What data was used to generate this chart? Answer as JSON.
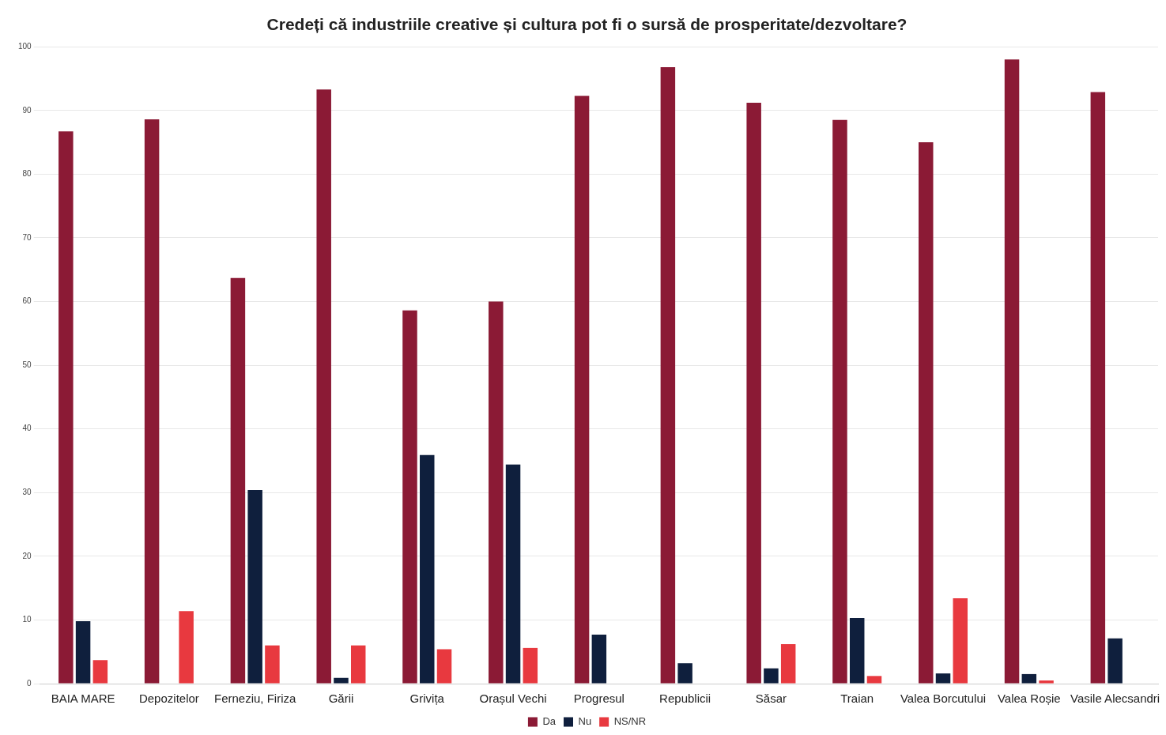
{
  "chart_data": {
    "type": "bar",
    "title": "Credeți că industriile creative și cultura pot fi o sursă de prosperitate/dezvoltare?",
    "categories": [
      "BAIA MARE",
      "Depozitelor",
      "Ferneziu, Firiza",
      "Gării",
      "Grivița",
      "Orașul Vechi",
      "Progresul",
      "Republicii",
      "Săsar",
      "Traian",
      "Valea Borcutului",
      "Valea Roșie",
      "Vasile Alecsandri"
    ],
    "series": [
      {
        "name": "Da",
        "color": "#8b1a35",
        "values": [
          86.7,
          88.6,
          63.7,
          93.3,
          58.6,
          60.0,
          92.3,
          96.8,
          91.2,
          88.5,
          85.0,
          98.0,
          92.9
        ]
      },
      {
        "name": "Nu",
        "color": "#0f1f3d",
        "values": [
          9.8,
          null,
          30.4,
          0.9,
          35.9,
          34.4,
          7.7,
          3.2,
          2.4,
          10.3,
          1.6,
          1.5,
          7.1
        ]
      },
      {
        "name": "NS/NR",
        "color": "#e8393f",
        "values": [
          3.7,
          11.4,
          6.0,
          6.0,
          5.4,
          5.6,
          null,
          null,
          6.2,
          1.2,
          13.4,
          0.5,
          null
        ]
      }
    ],
    "ylim": [
      0,
      100
    ],
    "yticks": [
      0,
      10,
      20,
      30,
      40,
      50,
      60,
      70,
      80,
      90,
      100
    ],
    "grid": "y",
    "legend": "bottom"
  }
}
